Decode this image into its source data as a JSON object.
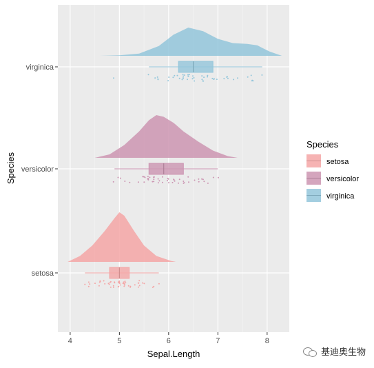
{
  "chart_data": {
    "type": "raincloud",
    "xlabel": "Sepal.Length",
    "ylabel": "Species",
    "xlim": [
      3.75,
      8.45
    ],
    "xticks": [
      "4",
      "5",
      "6",
      "7",
      "8"
    ],
    "categories": [
      "setosa",
      "versicolor",
      "virginica"
    ],
    "legend": {
      "title": "Species",
      "position": "right",
      "entries": [
        "setosa",
        "versicolor",
        "virginica"
      ]
    },
    "grid": true,
    "series": [
      {
        "name": "setosa",
        "color": "#F4A6A6",
        "box": {
          "min": 4.3,
          "q1": 4.8,
          "median": 5.0,
          "q3": 5.2,
          "max": 5.8
        },
        "density": {
          "x": [
            3.95,
            4.2,
            4.45,
            4.7,
            4.9,
            5.0,
            5.1,
            5.3,
            5.5,
            5.75,
            6.05,
            6.15
          ],
          "y": [
            0.0,
            0.12,
            0.33,
            0.62,
            0.88,
            1.0,
            0.93,
            0.62,
            0.33,
            0.12,
            0.02,
            0.0
          ]
        },
        "points": [
          4.3,
          4.4,
          4.4,
          4.4,
          4.5,
          4.6,
          4.6,
          4.6,
          4.6,
          4.7,
          4.7,
          4.8,
          4.8,
          4.8,
          4.8,
          4.8,
          4.9,
          4.9,
          4.9,
          4.9,
          5.0,
          5.0,
          5.0,
          5.0,
          5.0,
          5.0,
          5.0,
          5.0,
          5.1,
          5.1,
          5.1,
          5.1,
          5.1,
          5.1,
          5.1,
          5.1,
          5.2,
          5.2,
          5.2,
          5.3,
          5.4,
          5.4,
          5.4,
          5.4,
          5.4,
          5.5,
          5.5,
          5.7,
          5.7,
          5.8
        ]
      },
      {
        "name": "versicolor",
        "color": "#CC95B2",
        "box": {
          "min": 4.9,
          "q1": 5.6,
          "median": 5.9,
          "q3": 6.3,
          "max": 7.0
        },
        "density": {
          "x": [
            4.5,
            4.8,
            5.1,
            5.4,
            5.6,
            5.75,
            5.9,
            6.1,
            6.3,
            6.6,
            6.9,
            7.2,
            7.4
          ],
          "y": [
            0.0,
            0.08,
            0.3,
            0.62,
            0.88,
            1.0,
            0.96,
            0.82,
            0.62,
            0.38,
            0.17,
            0.04,
            0.0
          ]
        },
        "points": [
          4.9,
          5.0,
          5.0,
          5.1,
          5.2,
          5.4,
          5.5,
          5.5,
          5.5,
          5.5,
          5.5,
          5.6,
          5.6,
          5.6,
          5.6,
          5.6,
          5.7,
          5.7,
          5.7,
          5.7,
          5.7,
          5.8,
          5.8,
          5.8,
          5.9,
          5.9,
          6.0,
          6.0,
          6.0,
          6.0,
          6.1,
          6.1,
          6.1,
          6.1,
          6.2,
          6.2,
          6.3,
          6.3,
          6.3,
          6.4,
          6.4,
          6.5,
          6.6,
          6.6,
          6.7,
          6.7,
          6.7,
          6.8,
          6.9,
          7.0
        ]
      },
      {
        "name": "virginica",
        "color": "#93C6DB",
        "box": {
          "min": 5.6,
          "q1": 6.2,
          "median": 6.5,
          "q3": 6.9,
          "max": 7.9
        },
        "density": {
          "x": [
            4.6,
            5.0,
            5.4,
            5.8,
            6.1,
            6.4,
            6.7,
            7.0,
            7.3,
            7.6,
            7.8,
            8.05,
            8.3
          ],
          "y": [
            0.0,
            0.02,
            0.08,
            0.35,
            0.75,
            1.0,
            0.87,
            0.6,
            0.45,
            0.42,
            0.37,
            0.15,
            0.0
          ]
        },
        "points": [
          4.9,
          5.6,
          5.7,
          5.8,
          5.8,
          5.8,
          6.0,
          6.0,
          6.1,
          6.1,
          6.2,
          6.2,
          6.3,
          6.3,
          6.3,
          6.3,
          6.3,
          6.3,
          6.4,
          6.4,
          6.4,
          6.4,
          6.4,
          6.5,
          6.5,
          6.5,
          6.5,
          6.7,
          6.7,
          6.7,
          6.7,
          6.7,
          6.8,
          6.8,
          6.9,
          6.9,
          6.9,
          7.0,
          7.1,
          7.2,
          7.2,
          7.2,
          7.3,
          7.4,
          7.6,
          7.7,
          7.7,
          7.7,
          7.7,
          7.9
        ]
      }
    ]
  },
  "watermark": {
    "text": "基迪奥生物",
    "icon": "wechat-icon"
  }
}
